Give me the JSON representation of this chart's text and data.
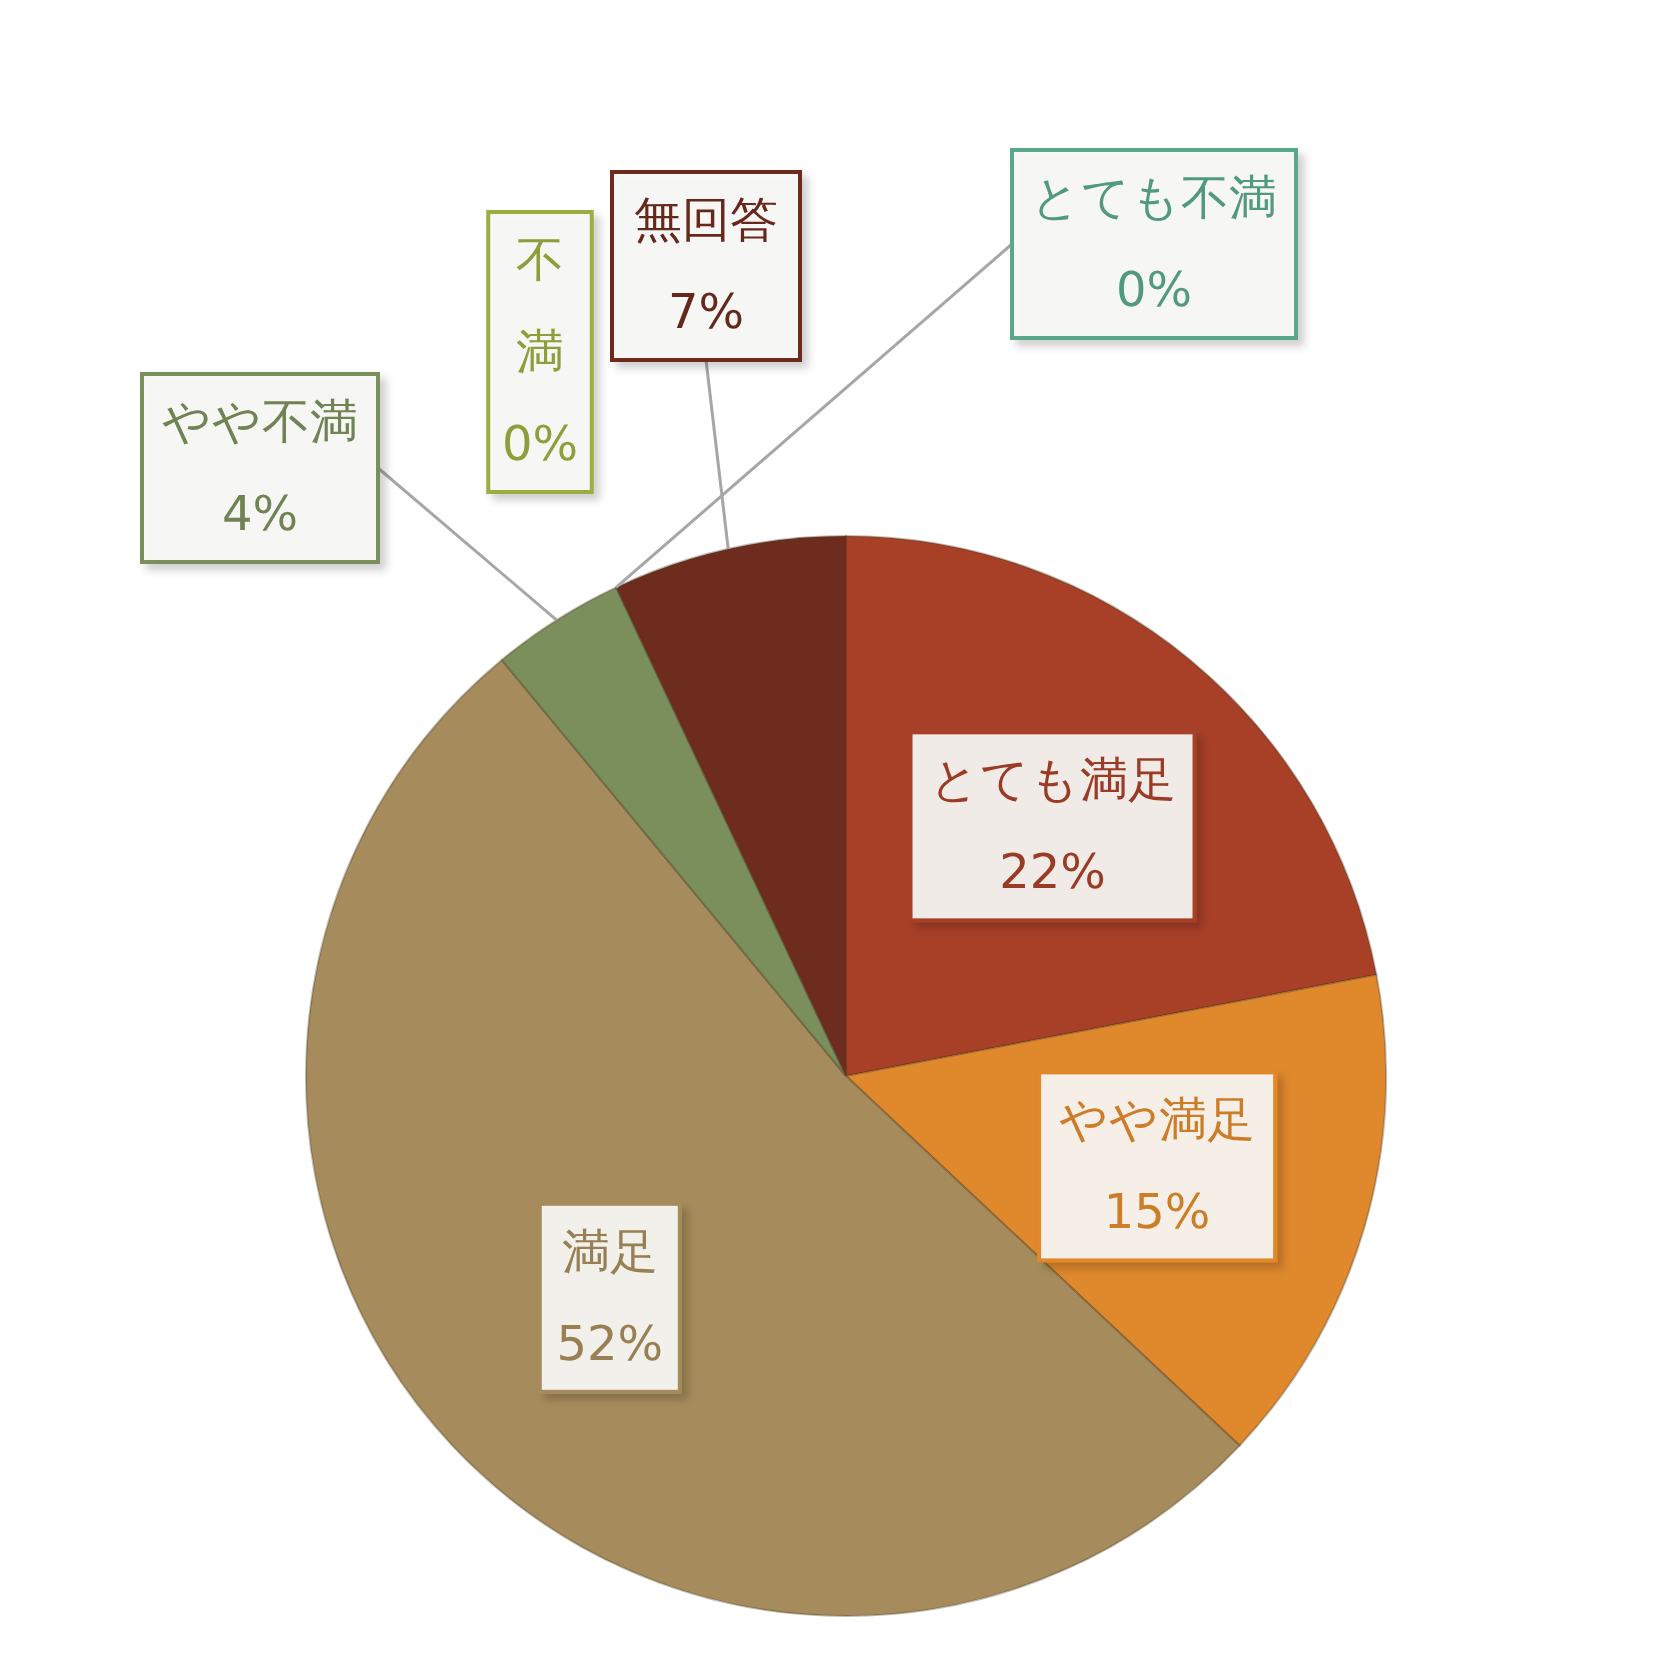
{
  "chart_data": {
    "type": "pie",
    "categories": [
      "とても満足",
      "やや満足",
      "満足",
      "やや不満",
      "不満",
      "とても不満",
      "無回答"
    ],
    "values": [
      22,
      15,
      52,
      4,
      0,
      0,
      7
    ],
    "colors": [
      "#a84028",
      "#e0882c",
      "#a68c5c",
      "#7a8f5c",
      "#9aae40",
      "#5aa88a",
      "#6e2c1e"
    ],
    "value_labels": [
      "22%",
      "15%",
      "52%",
      "4%",
      "0%",
      "0%",
      "7%"
    ]
  }
}
